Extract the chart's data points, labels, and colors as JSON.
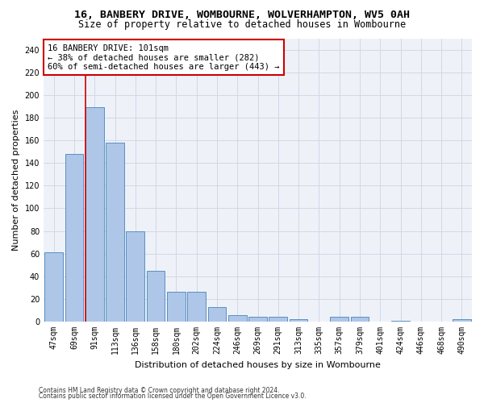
{
  "title_line1": "16, BANBERY DRIVE, WOMBOURNE, WOLVERHAMPTON, WV5 0AH",
  "title_line2": "Size of property relative to detached houses in Wombourne",
  "xlabel": "Distribution of detached houses by size in Wombourne",
  "ylabel": "Number of detached properties",
  "categories": [
    "47sqm",
    "69sqm",
    "91sqm",
    "113sqm",
    "136sqm",
    "158sqm",
    "180sqm",
    "202sqm",
    "224sqm",
    "246sqm",
    "269sqm",
    "291sqm",
    "313sqm",
    "335sqm",
    "357sqm",
    "379sqm",
    "401sqm",
    "424sqm",
    "446sqm",
    "468sqm",
    "490sqm"
  ],
  "values": [
    61,
    148,
    189,
    158,
    80,
    45,
    26,
    26,
    13,
    6,
    4,
    4,
    2,
    0,
    4,
    4,
    0,
    1,
    0,
    0,
    2
  ],
  "bar_color": "#aec6e8",
  "bar_edge_color": "#5a8fc2",
  "red_line_bar_index": 2,
  "annotation_line1": "16 BANBERY DRIVE: 101sqm",
  "annotation_line2": "← 38% of detached houses are smaller (282)",
  "annotation_line3": "60% of semi-detached houses are larger (443) →",
  "annotation_box_color": "#ffffff",
  "annotation_box_edge": "#cc0000",
  "ylim": [
    0,
    250
  ],
  "yticks": [
    0,
    20,
    40,
    60,
    80,
    100,
    120,
    140,
    160,
    180,
    200,
    220,
    240
  ],
  "grid_color": "#d0d8e8",
  "background_color": "#eef2f8",
  "footer_line1": "Contains HM Land Registry data © Crown copyright and database right 2024.",
  "footer_line2": "Contains public sector information licensed under the Open Government Licence v3.0.",
  "title_fontsize": 9.5,
  "subtitle_fontsize": 8.5,
  "tick_fontsize": 7,
  "ylabel_fontsize": 8,
  "xlabel_fontsize": 8,
  "annotation_fontsize": 7.5,
  "footer_fontsize": 5.5
}
